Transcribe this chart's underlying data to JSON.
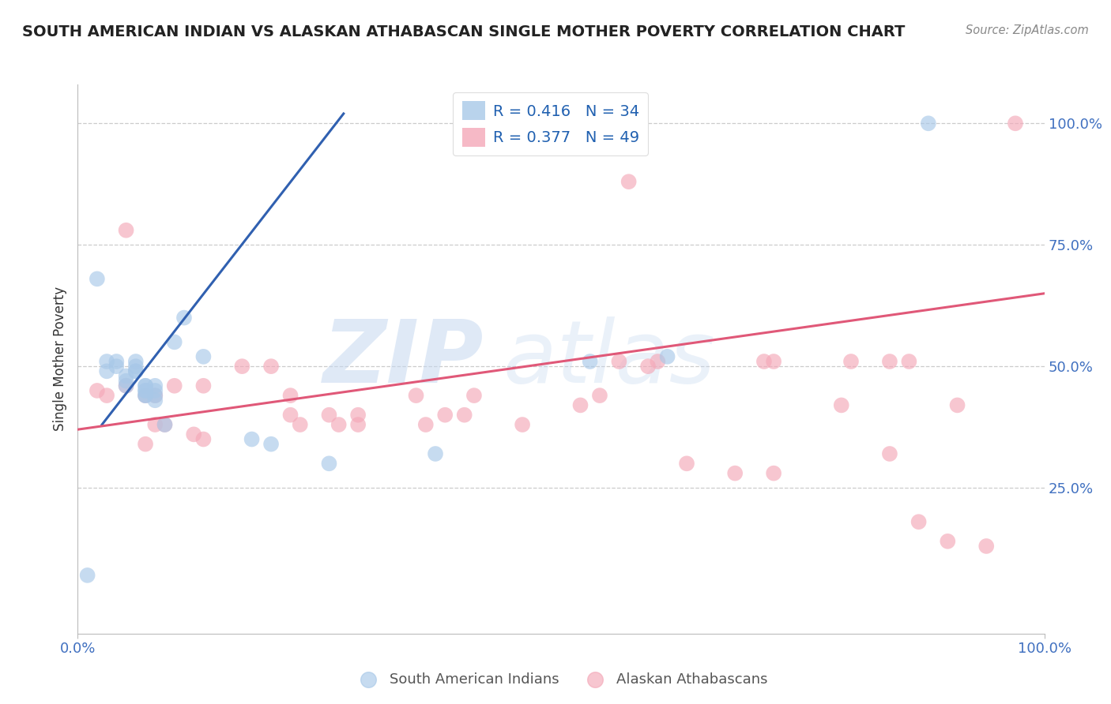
{
  "title": "SOUTH AMERICAN INDIAN VS ALASKAN ATHABASCAN SINGLE MOTHER POVERTY CORRELATION CHART",
  "source": "Source: ZipAtlas.com",
  "ylabel": "Single Mother Poverty",
  "xlabel": "",
  "xlim": [
    0,
    1
  ],
  "ylim": [
    -0.05,
    1.08
  ],
  "xtick_positions": [
    0,
    1
  ],
  "xtick_labels": [
    "0.0%",
    "100.0%"
  ],
  "ytick_positions": [
    0.25,
    0.5,
    0.75,
    1.0
  ],
  "ytick_labels": [
    "25.0%",
    "50.0%",
    "75.0%",
    "100.0%"
  ],
  "blue_R": "0.416",
  "blue_N": "34",
  "pink_R": "0.377",
  "pink_N": "49",
  "blue_color": "#a8c8e8",
  "pink_color": "#f4a8b8",
  "blue_line_color": "#3060b0",
  "pink_line_color": "#e05878",
  "watermark_zip": "ZIP",
  "watermark_atlas": "atlas",
  "blue_scatter_x": [
    0.01,
    0.02,
    0.03,
    0.03,
    0.04,
    0.04,
    0.05,
    0.05,
    0.05,
    0.06,
    0.06,
    0.06,
    0.06,
    0.07,
    0.07,
    0.07,
    0.07,
    0.07,
    0.07,
    0.08,
    0.08,
    0.08,
    0.08,
    0.09,
    0.1,
    0.11,
    0.13,
    0.18,
    0.2,
    0.26,
    0.37,
    0.53,
    0.61,
    0.88
  ],
  "blue_scatter_y": [
    0.07,
    0.68,
    0.49,
    0.51,
    0.51,
    0.5,
    0.48,
    0.47,
    0.46,
    0.49,
    0.49,
    0.5,
    0.51,
    0.44,
    0.44,
    0.45,
    0.45,
    0.46,
    0.46,
    0.43,
    0.44,
    0.45,
    0.46,
    0.38,
    0.55,
    0.6,
    0.52,
    0.35,
    0.34,
    0.3,
    0.32,
    0.51,
    0.52,
    1.0
  ],
  "pink_scatter_x": [
    0.02,
    0.03,
    0.05,
    0.05,
    0.07,
    0.07,
    0.08,
    0.08,
    0.09,
    0.1,
    0.12,
    0.13,
    0.13,
    0.17,
    0.2,
    0.22,
    0.22,
    0.23,
    0.26,
    0.27,
    0.29,
    0.29,
    0.35,
    0.36,
    0.38,
    0.4,
    0.41,
    0.46,
    0.52,
    0.54,
    0.56,
    0.57,
    0.59,
    0.6,
    0.63,
    0.68,
    0.71,
    0.72,
    0.72,
    0.79,
    0.8,
    0.84,
    0.84,
    0.86,
    0.87,
    0.9,
    0.91,
    0.94,
    0.97
  ],
  "pink_scatter_y": [
    0.45,
    0.44,
    0.78,
    0.46,
    0.44,
    0.34,
    0.44,
    0.38,
    0.38,
    0.46,
    0.36,
    0.46,
    0.35,
    0.5,
    0.5,
    0.44,
    0.4,
    0.38,
    0.4,
    0.38,
    0.38,
    0.4,
    0.44,
    0.38,
    0.4,
    0.4,
    0.44,
    0.38,
    0.42,
    0.44,
    0.51,
    0.88,
    0.5,
    0.51,
    0.3,
    0.28,
    0.51,
    0.51,
    0.28,
    0.42,
    0.51,
    0.51,
    0.32,
    0.51,
    0.18,
    0.14,
    0.42,
    0.13,
    1.0
  ],
  "blue_line_x": [
    0.025,
    0.275
  ],
  "blue_line_y": [
    0.38,
    1.02
  ],
  "pink_line_x": [
    0.0,
    1.0
  ],
  "pink_line_y": [
    0.37,
    0.65
  ],
  "background_color": "#ffffff",
  "grid_color": "#cccccc"
}
